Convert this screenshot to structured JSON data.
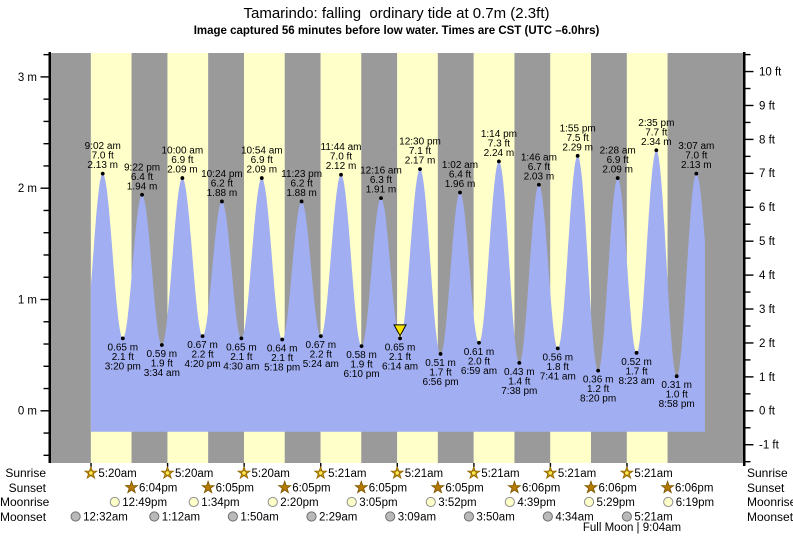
{
  "title": "Tamarindo: falling  ordinary tide at 0.7m (2.3ft)",
  "subtitle": "Image captured 56 minutes before low water. Times are CST (UTC –6.0hrs)",
  "chart_data": {
    "type": "area",
    "title": "Tamarindo: falling  ordinary tide at 0.7m (2.3ft)",
    "unit_left": "m",
    "unit_right": "ft",
    "ylim_m": [
      -0.47,
      3.21
    ],
    "ylim_ft": [
      -1.5,
      10.5
    ],
    "left_tick_labels": [
      "0 m",
      "1 m",
      "2 m",
      "3 m"
    ],
    "right_tick_labels": [
      "-1 ft",
      "0 ft",
      "1 ft",
      "2 ft",
      "3 ft",
      "4 ft",
      "5 ft",
      "6 ft",
      "7 ft",
      "8 ft",
      "9 ft",
      "10 ft"
    ],
    "num_days": 9,
    "grid": false,
    "legend": false,
    "tide_events": [
      {
        "day": 1,
        "time": "9:02 am",
        "type": "high",
        "ft": "7.0 ft",
        "m": "2.13 m"
      },
      {
        "day": 1,
        "time": "3:20 pm",
        "type": "low",
        "ft": "2.1 ft",
        "m": "0.65 m"
      },
      {
        "day": 1,
        "time": "9:22 pm",
        "type": "high",
        "ft": "6.4 ft",
        "m": "1.94 m"
      },
      {
        "day": 2,
        "time": "3:34 am",
        "type": "low",
        "ft": "1.9 ft",
        "m": "0.59 m"
      },
      {
        "day": 2,
        "time": "10:00 am",
        "type": "high",
        "ft": "6.9 ft",
        "m": "2.09 m"
      },
      {
        "day": 2,
        "time": "4:20 pm",
        "type": "low",
        "ft": "2.2 ft",
        "m": "0.67 m"
      },
      {
        "day": 2,
        "time": "10:24 pm",
        "type": "high",
        "ft": "6.2 ft",
        "m": "1.88 m"
      },
      {
        "day": 3,
        "time": "4:30 am",
        "type": "low",
        "ft": "2.1 ft",
        "m": "0.65 m"
      },
      {
        "day": 3,
        "time": "10:54 am",
        "type": "high",
        "ft": "6.9 ft",
        "m": "2.09 m"
      },
      {
        "day": 3,
        "time": "5:18 pm",
        "type": "low",
        "ft": "2.1 ft",
        "m": "0.64 m"
      },
      {
        "day": 3,
        "time": "11:23 pm",
        "type": "high",
        "ft": "6.2 ft",
        "m": "1.88 m"
      },
      {
        "day": 4,
        "time": "5:24 am",
        "type": "low",
        "ft": "2.2 ft",
        "m": "0.67 m"
      },
      {
        "day": 4,
        "time": "11:44 am",
        "type": "high",
        "ft": "7.0 ft",
        "m": "2.12 m"
      },
      {
        "day": 4,
        "time": "6:10 pm",
        "type": "low",
        "ft": "1.9 ft",
        "m": "0.58 m"
      },
      {
        "day": 5,
        "time": "12:16 am",
        "type": "high",
        "ft": "6.3 ft",
        "m": "1.91 m"
      },
      {
        "day": 5,
        "time": "6:14 am",
        "type": "low",
        "ft": "2.1 ft",
        "m": "0.65 m"
      },
      {
        "day": 5,
        "time": "12:30 pm",
        "type": "high",
        "ft": "7.1 ft",
        "m": "2.17 m"
      },
      {
        "day": 5,
        "time": "6:56 pm",
        "type": "low",
        "ft": "1.7 ft",
        "m": "0.51 m"
      },
      {
        "day": 6,
        "time": "1:02 am",
        "type": "high",
        "ft": "6.4 ft",
        "m": "1.96 m"
      },
      {
        "day": 6,
        "time": "6:59 am",
        "type": "low",
        "ft": "2.0 ft",
        "m": "0.61 m"
      },
      {
        "day": 6,
        "time": "1:14 pm",
        "type": "high",
        "ft": "7.3 ft",
        "m": "2.24 m"
      },
      {
        "day": 6,
        "time": "7:38 pm",
        "type": "low",
        "ft": "1.4 ft",
        "m": "0.43 m"
      },
      {
        "day": 7,
        "time": "1:46 am",
        "type": "high",
        "ft": "6.7 ft",
        "m": "2.03 m"
      },
      {
        "day": 7,
        "time": "7:41 am",
        "type": "low",
        "ft": "1.8 ft",
        "m": "0.56 m"
      },
      {
        "day": 7,
        "time": "1:55 pm",
        "type": "high",
        "ft": "7.5 ft",
        "m": "2.29 m"
      },
      {
        "day": 7,
        "time": "8:20 pm",
        "type": "low",
        "ft": "1.2 ft",
        "m": "0.36 m"
      },
      {
        "day": 8,
        "time": "2:28 am",
        "type": "high",
        "ft": "6.9 ft",
        "m": "2.09 m"
      },
      {
        "day": 8,
        "time": "8:23 am",
        "type": "low",
        "ft": "1.7 ft",
        "m": "0.52 m"
      },
      {
        "day": 8,
        "time": "2:35 pm",
        "type": "high",
        "ft": "7.7 ft",
        "m": "2.34 m"
      },
      {
        "day": 8,
        "time": "8:58 pm",
        "type": "low",
        "ft": "1.0 ft",
        "m": "0.31 m"
      },
      {
        "day": 9,
        "time": "3:07 am",
        "type": "high",
        "ft": "7.0 ft",
        "m": "2.13 m"
      }
    ],
    "current_marker": {
      "event_index": 15,
      "label": "current position (56 min before low water)"
    }
  },
  "astro": {
    "rows": [
      {
        "label": "Sunrise",
        "icon": "sunrise-icon",
        "times": [
          "5:20am",
          "5:20am",
          "5:20am",
          "5:21am",
          "5:21am",
          "5:21am",
          "5:21am",
          "5:21am"
        ]
      },
      {
        "label": "Sunset",
        "icon": "sunset-icon",
        "times": [
          "6:04pm",
          "6:05pm",
          "6:05pm",
          "6:05pm",
          "6:05pm",
          "6:06pm",
          "6:06pm",
          "6:06pm"
        ]
      },
      {
        "label": "Moonrise",
        "icon": "moonrise-icon",
        "times": [
          "12:49pm",
          "1:34pm",
          "2:20pm",
          "3:05pm",
          "3:52pm",
          "4:39pm",
          "5:29pm",
          "6:19pm"
        ]
      },
      {
        "label": "Moonset",
        "icon": "moonset-icon",
        "times": [
          "12:32am",
          "1:12am",
          "1:50am",
          "2:29am",
          "3:09am",
          "3:50am",
          "4:34am",
          "5:21am"
        ]
      }
    ],
    "moon_phase": "Full Moon | 9:04am"
  },
  "colors": {
    "night_band": "#9a9a9a",
    "day_band": "#ffffc9",
    "tide_fill": "#a1aef1",
    "marker_yellow": "#f5e300",
    "sunrise_star": "#d99b00",
    "sunrise_star_center": "#ffe84d",
    "sunset_star": "#b57b00",
    "moonrise_fill": "#ffffc9",
    "moonset_fill": "#b9b9b9",
    "text": "#000000"
  }
}
